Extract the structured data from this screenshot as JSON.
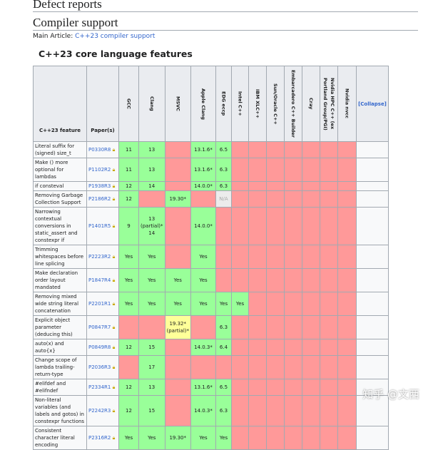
{
  "headings": {
    "defect": "Defect reports",
    "compiler": "Compiler support",
    "main_prefix": "Main Article: ",
    "main_link": "C++23 compiler support",
    "table_title": "C++23 core language features"
  },
  "columns": {
    "feature": "C++23 feature",
    "paper": "Paper(s)",
    "compilers": [
      "GCC",
      "Clang",
      "MSVC",
      "Apple Clang",
      "EDG eccp",
      "Intel C++",
      "IBM XLC++",
      "Sun/Oracle C++",
      "Embarcadero C++ Builder",
      "Cray",
      "Nvidia HPC C++ (ex Portland Group/PGI)",
      "Nvidia nvcc"
    ],
    "collapse": "[Collapse]"
  },
  "status_colors": {
    "y": "#99ff99",
    "n": "#ff9999",
    "p": "#ffff99",
    "na": "#ececec"
  },
  "rows": [
    {
      "feature": "Literal suffix for (signed) size_t",
      "paper": "P0330R8",
      "cells": [
        [
          "11",
          "y"
        ],
        [
          "13",
          "y"
        ],
        [
          "",
          "n"
        ],
        [
          "13.1.6*",
          "y"
        ],
        [
          "6.5",
          "y"
        ]
      ]
    },
    {
      "feature": "Make () more optional for lambdas",
      "paper": "P1102R2",
      "cells": [
        [
          "11",
          "y"
        ],
        [
          "13",
          "y"
        ],
        [
          "",
          "n"
        ],
        [
          "13.1.6*",
          "y"
        ],
        [
          "6.3",
          "y"
        ]
      ]
    },
    {
      "feature": "if consteval",
      "paper": "P1938R3",
      "cells": [
        [
          "12",
          "y"
        ],
        [
          "14",
          "y"
        ],
        [
          "",
          "n"
        ],
        [
          "14.0.0*",
          "y"
        ],
        [
          "6.3",
          "y"
        ]
      ]
    },
    {
      "feature": "Removing Garbage Collection Support",
      "paper": "P2186R2",
      "cells": [
        [
          "12",
          "y"
        ],
        [
          "",
          "n"
        ],
        [
          "19.30*",
          "y"
        ],
        [
          "",
          "n"
        ],
        [
          "N/A",
          "na"
        ]
      ]
    },
    {
      "feature": "Narrowing contextual conversions in static_assert and constexpr if",
      "paper": "P1401R5",
      "cells": [
        [
          "9",
          "y"
        ],
        [
          "13 (partial)* 14",
          "y"
        ],
        [
          "",
          "n"
        ],
        [
          "14.0.0*",
          "y"
        ],
        [
          "",
          "n"
        ]
      ]
    },
    {
      "feature": "Trimming whitespaces before line splicing",
      "paper": "P2223R2",
      "cells": [
        [
          "Yes",
          "y"
        ],
        [
          "Yes",
          "y"
        ],
        [
          "",
          "n"
        ],
        [
          "Yes",
          "y"
        ],
        [
          "",
          "n"
        ]
      ]
    },
    {
      "feature": "Make declaration order layout mandated",
      "paper": "P1847R4",
      "cells": [
        [
          "Yes",
          "y"
        ],
        [
          "Yes",
          "y"
        ],
        [
          "Yes",
          "y"
        ],
        [
          "Yes",
          "y"
        ],
        [
          "",
          "n"
        ]
      ]
    },
    {
      "feature": "Removing mixed wide string literal concatenation",
      "paper": "P2201R1",
      "cells": [
        [
          "Yes",
          "y"
        ],
        [
          "Yes",
          "y"
        ],
        [
          "Yes",
          "y"
        ],
        [
          "Yes",
          "y"
        ],
        [
          "Yes",
          "y"
        ],
        [
          "Yes",
          "y"
        ]
      ]
    },
    {
      "feature": "Explicit object parameter (deducing this)",
      "paper": "P0847R7",
      "cells": [
        [
          "",
          "n"
        ],
        [
          "",
          "n"
        ],
        [
          "19.32* (partial)*",
          "p"
        ],
        [
          "",
          "n"
        ],
        [
          "6.3",
          "y"
        ]
      ]
    },
    {
      "feature": "auto(x) and auto{x}",
      "paper": "P0849R8",
      "cells": [
        [
          "12",
          "y"
        ],
        [
          "15",
          "y"
        ],
        [
          "",
          "n"
        ],
        [
          "14.0.3*",
          "y"
        ],
        [
          "6.4",
          "y"
        ]
      ]
    },
    {
      "feature": "Change scope of lambda trailing-return-type",
      "paper": "P2036R3",
      "cells": [
        [
          "",
          "n"
        ],
        [
          "17",
          "y"
        ],
        [
          "",
          "n"
        ],
        [
          "",
          "n"
        ],
        [
          "",
          "n"
        ]
      ]
    },
    {
      "feature": "#elifdef and #elifndef",
      "paper": "P2334R1",
      "cells": [
        [
          "12",
          "y"
        ],
        [
          "13",
          "y"
        ],
        [
          "",
          "n"
        ],
        [
          "13.1.6*",
          "y"
        ],
        [
          "6.5",
          "y"
        ]
      ]
    },
    {
      "feature": "Non-literal variables (and labels and gotos) in constexpr functions",
      "paper": "P2242R3",
      "cells": [
        [
          "12",
          "y"
        ],
        [
          "15",
          "y"
        ],
        [
          "",
          "n"
        ],
        [
          "14.0.3*",
          "y"
        ],
        [
          "6.3",
          "y"
        ]
      ]
    },
    {
      "feature": "Consistent character literal encoding",
      "paper": "P2316R2",
      "cells": [
        [
          "Yes",
          "y"
        ],
        [
          "Yes",
          "y"
        ],
        [
          "19.30*",
          "y"
        ],
        [
          "Yes",
          "y"
        ],
        [
          "Yes",
          "y"
        ]
      ]
    }
  ],
  "watermark": "知乎 @文西"
}
